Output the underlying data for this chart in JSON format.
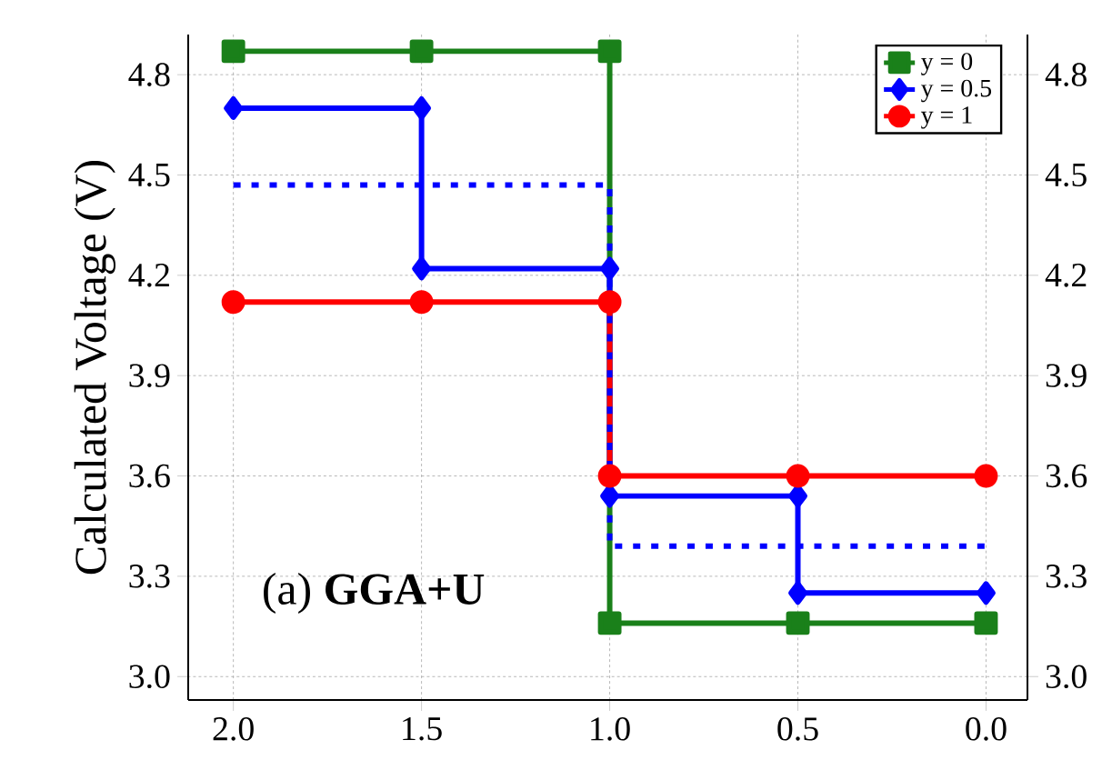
{
  "chart_data": {
    "type": "line",
    "ylabel": "Calculated Voltage (V)",
    "xlim": [
      2.12,
      -0.11
    ],
    "ylim": [
      2.93,
      4.92
    ],
    "y2lim": [
      2.93,
      4.92
    ],
    "xticks": [
      {
        "value": 2,
        "label": "2.0"
      },
      {
        "value": 1.5,
        "label": "1.5"
      },
      {
        "value": 1,
        "label": "1.0"
      },
      {
        "value": 0.5,
        "label": "0.5"
      },
      {
        "value": 0,
        "label": "0.0"
      }
    ],
    "yticks": [
      {
        "value": 3,
        "label": "3.0"
      },
      {
        "value": 3.3,
        "label": "3.3"
      },
      {
        "value": 3.6,
        "label": "3.6"
      },
      {
        "value": 3.9,
        "label": "3.9"
      },
      {
        "value": 4.2,
        "label": "4.2"
      },
      {
        "value": 4.5,
        "label": "4.5"
      },
      {
        "value": 4.8,
        "label": "4.8"
      }
    ],
    "y2ticks": [
      {
        "value": 3,
        "label": "3.0"
      },
      {
        "value": 3.3,
        "label": "3.3"
      },
      {
        "value": 3.6,
        "label": "3.6"
      },
      {
        "value": 3.9,
        "label": "3.9"
      },
      {
        "value": 4.2,
        "label": "4.2"
      },
      {
        "value": 4.5,
        "label": "4.5"
      },
      {
        "value": 4.8,
        "label": "4.8"
      }
    ],
    "grid": true,
    "legend": "top right",
    "series": [
      {
        "name": "y = 0",
        "color": "#1a801a",
        "marker": "square",
        "x": [
          2,
          1.5,
          1,
          1,
          0.5,
          0
        ],
        "values": [
          4.87,
          4.87,
          4.87,
          3.16,
          3.16,
          3.16
        ]
      },
      {
        "name": "y = 0.5",
        "color": "#0000ff",
        "marker": "diamond",
        "x": [
          2,
          1.5,
          1.5,
          1,
          1,
          0.5,
          0.5,
          0
        ],
        "values": [
          4.7,
          4.7,
          4.22,
          4.22,
          3.54,
          3.54,
          3.25,
          3.25
        ]
      },
      {
        "name": "y = 1",
        "color": "#ff0000",
        "marker": "circle",
        "x": [
          2,
          1.5,
          1,
          1,
          0.5,
          0
        ],
        "values": [
          4.12,
          4.12,
          4.12,
          3.6,
          3.6,
          3.6
        ]
      },
      {
        "color": "#0000ff",
        "marker": "none",
        "line_style": "dotted",
        "x": [
          2,
          1,
          1,
          0
        ],
        "values": [
          4.47,
          4.47,
          3.39,
          3.39
        ]
      }
    ],
    "annotations": [
      "(a) **GGA+U**"
    ]
  }
}
